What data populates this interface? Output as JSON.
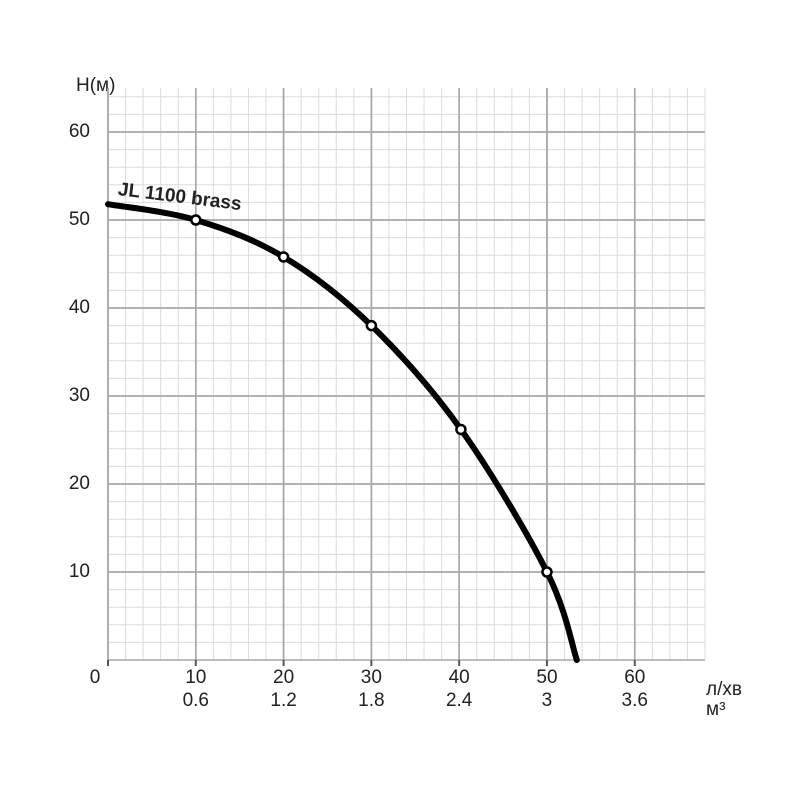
{
  "chart_data": {
    "type": "line",
    "y_label": "H(м)",
    "x_label": "л/хв",
    "x2_label": "м³",
    "xlim": [
      0,
      68
    ],
    "ylim": [
      0,
      65
    ],
    "xticks": [
      0,
      10,
      20,
      30,
      40,
      50,
      60
    ],
    "yticks": [
      10,
      20,
      30,
      40,
      50,
      60
    ],
    "x2lim": [
      0,
      4.08
    ],
    "x2ticks": [
      0.6,
      1.2,
      1.8,
      2.4,
      3,
      3.6
    ],
    "grid": true,
    "series": [
      {
        "name": "JL 1100 brass",
        "color": "#000000",
        "x": [
          0,
          10,
          20,
          30,
          40.2,
          50,
          53.4
        ],
        "values": [
          51.8,
          50,
          45.8,
          38,
          26.2,
          10,
          0
        ],
        "markers": [
          false,
          true,
          true,
          true,
          true,
          true,
          false
        ]
      }
    ]
  }
}
